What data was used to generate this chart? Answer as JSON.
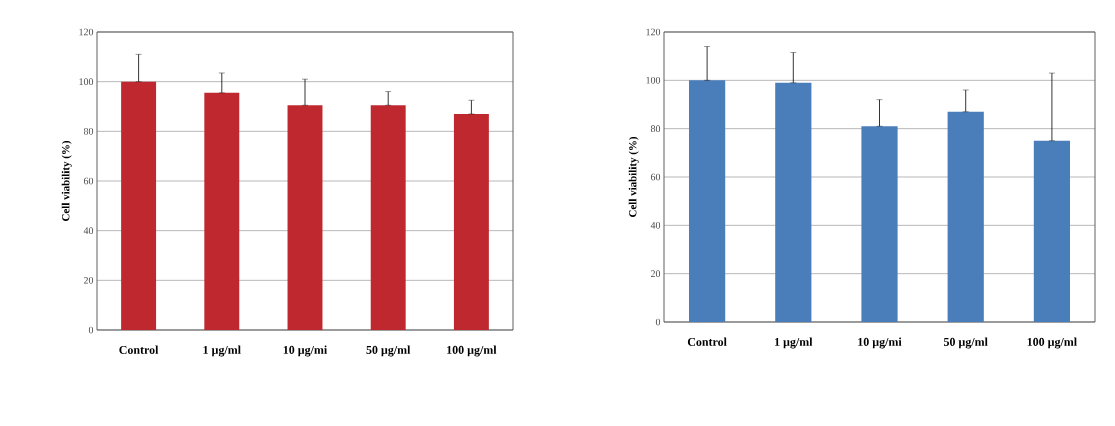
{
  "chart_data": [
    {
      "type": "bar",
      "categories": [
        "Control",
        "1 µg/ml",
        "10 µg/mi",
        "50 µg/ml",
        "100 µg/ml"
      ],
      "values": [
        100,
        95.5,
        90.5,
        90.5,
        87
      ],
      "errors": [
        [
          100,
          111
        ],
        [
          95.5,
          103.5
        ],
        [
          90.5,
          101
        ],
        [
          90.5,
          96
        ],
        [
          87,
          92.5
        ]
      ],
      "color": "#c0282f",
      "ylabel": "Cell viability (%)",
      "ylim": [
        0,
        120
      ],
      "yticks": [
        0,
        20,
        40,
        60,
        80,
        100,
        120
      ],
      "grid": "y"
    },
    {
      "type": "bar",
      "categories": [
        "Control",
        "1 µg/ml",
        "10 µg/mi",
        "50 µg/ml",
        "100 µg/ml"
      ],
      "values": [
        100,
        99,
        81,
        87,
        75
      ],
      "errors": [
        [
          100,
          114
        ],
        [
          99,
          111.5
        ],
        [
          81,
          92
        ],
        [
          87,
          96
        ],
        [
          75,
          103
        ]
      ],
      "color": "#4a7ebb",
      "ylabel": "Cell viability (%)",
      "ylim": [
        0,
        120
      ],
      "yticks": [
        0,
        20,
        40,
        60,
        80,
        100,
        120
      ],
      "grid": "y"
    }
  ]
}
